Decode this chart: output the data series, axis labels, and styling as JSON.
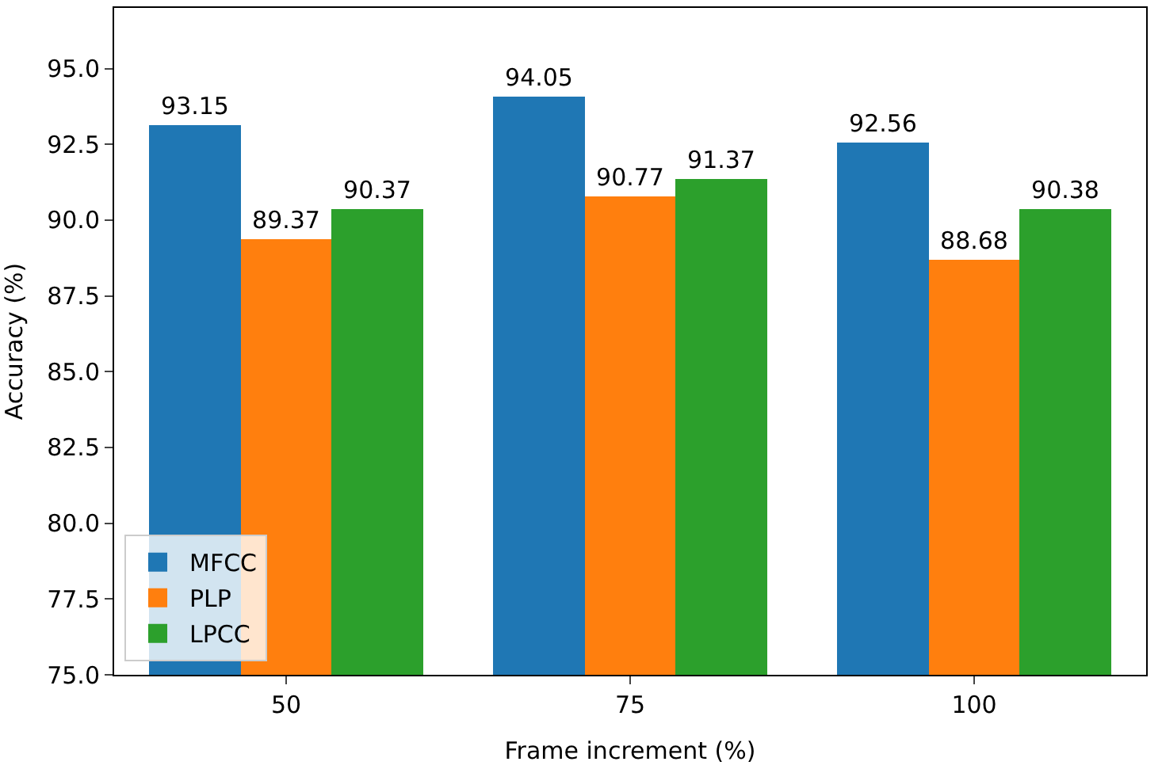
{
  "chart_data": {
    "type": "bar",
    "xlabel": "Frame increment (%)",
    "ylabel": "Accuracy (%)",
    "categories": [
      "50",
      "75",
      "100"
    ],
    "series": [
      {
        "name": "MFCC",
        "color": "#1f77b4",
        "values": [
          93.15,
          94.05,
          92.56
        ],
        "value_labels": [
          "93.15",
          "94.05",
          "92.56"
        ]
      },
      {
        "name": "PLP",
        "color": "#ff7f0e",
        "values": [
          89.37,
          90.77,
          88.68
        ],
        "value_labels": [
          "89.37",
          "90.77",
          "88.68"
        ]
      },
      {
        "name": "LPCC",
        "color": "#2ca02c",
        "values": [
          90.37,
          91.37,
          90.38
        ],
        "value_labels": [
          "90.37",
          "91.37",
          "90.38"
        ]
      }
    ],
    "ylim": [
      75,
      97
    ],
    "yticks": [
      {
        "value": 75,
        "label": "75.0"
      },
      {
        "value": 77.5,
        "label": "77.5"
      },
      {
        "value": 80,
        "label": "80.0"
      },
      {
        "value": 82.5,
        "label": "82.5"
      },
      {
        "value": 85,
        "label": "85.0"
      },
      {
        "value": 87.5,
        "label": "87.5"
      },
      {
        "value": 90,
        "label": "90.0"
      },
      {
        "value": 92.5,
        "label": "92.5"
      },
      {
        "value": 95,
        "label": "95.0"
      }
    ],
    "legend": "bottom left"
  }
}
